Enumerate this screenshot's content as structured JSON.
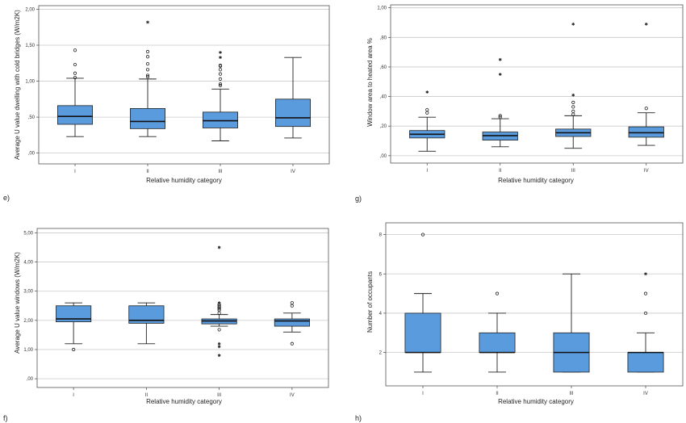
{
  "chart_data": [
    {
      "id": "tl",
      "type": "box",
      "panel_label": "",
      "xlabel": "Relative humidity category",
      "ylabel": "Average U value dwelling with cold bridges (W/m2K)",
      "categories": [
        "I",
        "II",
        "III",
        "IV"
      ],
      "ylim": [
        -0.15,
        2.05
      ],
      "yticks": [
        0,
        0.5,
        1.0,
        1.5,
        2.0
      ],
      "ytick_labels": [
        ",00",
        ",50",
        "1,00",
        "1,50",
        "2,00"
      ],
      "box_color": "#5a9bde",
      "boxes": [
        {
          "category": "I",
          "whisker_low": 0.23,
          "q1": 0.4,
          "median": 0.51,
          "q3": 0.66,
          "whisker_high": 1.04,
          "outliers_circle": [
            1.05,
            1.11,
            1.23,
            1.43
          ],
          "outliers_star": []
        },
        {
          "category": "II",
          "whisker_low": 0.23,
          "q1": 0.34,
          "median": 0.44,
          "q3": 0.62,
          "whisker_high": 1.03,
          "outliers_circle": [
            1.06,
            1.08,
            1.16,
            1.24,
            1.34,
            1.41
          ],
          "outliers_star": [
            1.82
          ]
        },
        {
          "category": "III",
          "whisker_low": 0.17,
          "q1": 0.35,
          "median": 0.45,
          "q3": 0.57,
          "whisker_high": 0.89,
          "outliers_circle": [
            0.94,
            0.96,
            1.03,
            1.1,
            1.16,
            1.21,
            1.22
          ],
          "outliers_star": [
            1.33,
            1.4
          ]
        },
        {
          "category": "IV",
          "whisker_low": 0.21,
          "q1": 0.37,
          "median": 0.49,
          "q3": 0.75,
          "whisker_high": 1.33,
          "outliers_circle": [],
          "outliers_star": []
        }
      ]
    },
    {
      "id": "tr",
      "type": "box",
      "panel_label": "",
      "xlabel": "Relative humidity category",
      "ylabel": "Window area to heated area %",
      "categories": [
        "I",
        "II",
        "III",
        "IV"
      ],
      "ylim": [
        -0.05,
        1.02
      ],
      "yticks": [
        0,
        0.2,
        0.4,
        0.6,
        0.8,
        1.0
      ],
      "ytick_labels": [
        ",00",
        ",20",
        ",40",
        ",60",
        ",80",
        "1,00"
      ],
      "box_color": "#5a9bde",
      "boxes": [
        {
          "category": "I",
          "whisker_low": 0.03,
          "q1": 0.12,
          "median": 0.145,
          "q3": 0.17,
          "whisker_high": 0.26,
          "outliers_circle": [
            0.29,
            0.31
          ],
          "outliers_star": [
            0.43
          ]
        },
        {
          "category": "II",
          "whisker_low": 0.06,
          "q1": 0.105,
          "median": 0.135,
          "q3": 0.16,
          "whisker_high": 0.25,
          "outliers_circle": [
            0.26,
            0.27
          ],
          "outliers_star": [
            0.55,
            0.65
          ]
        },
        {
          "category": "III",
          "whisker_low": 0.05,
          "q1": 0.13,
          "median": 0.155,
          "q3": 0.18,
          "whisker_high": 0.27,
          "outliers_circle": [
            0.28,
            0.3,
            0.33,
            0.36
          ],
          "outliers_star": [
            0.41,
            0.89
          ]
        },
        {
          "category": "IV",
          "whisker_low": 0.07,
          "q1": 0.125,
          "median": 0.155,
          "q3": 0.195,
          "whisker_high": 0.29,
          "outliers_circle": [
            0.32
          ],
          "outliers_star": [
            0.89
          ]
        }
      ]
    },
    {
      "id": "bl",
      "type": "box",
      "panel_label": "",
      "xlabel": "Relative humidity category",
      "ylabel": "Average U value windows (W/m2K)",
      "categories": [
        "I",
        "II",
        "III",
        "IV"
      ],
      "ylim": [
        -0.3,
        5.15
      ],
      "yticks": [
        0,
        1,
        2,
        3,
        4,
        5
      ],
      "ytick_labels": [
        ",00",
        "1,00",
        "2,00",
        "3,00",
        "4,00",
        "5,00"
      ],
      "box_color": "#5a9bde",
      "boxes": [
        {
          "category": "I",
          "whisker_low": 1.2,
          "q1": 1.95,
          "median": 2.05,
          "q3": 2.5,
          "whisker_high": 2.6,
          "outliers_circle": [
            1.0
          ],
          "outliers_star": []
        },
        {
          "category": "II",
          "whisker_low": 1.2,
          "q1": 1.9,
          "median": 2.0,
          "q3": 2.5,
          "whisker_high": 2.6,
          "outliers_circle": [],
          "outliers_star": []
        },
        {
          "category": "III",
          "whisker_low": 1.8,
          "q1": 1.88,
          "median": 1.98,
          "q3": 2.05,
          "whisker_high": 2.2,
          "outliers_circle": [
            1.68,
            2.25,
            2.35,
            2.4,
            2.45,
            2.5,
            2.55
          ],
          "outliers_star": [
            0.8,
            1.1,
            1.2,
            2.6,
            4.5
          ]
        },
        {
          "category": "IV",
          "whisker_low": 1.6,
          "q1": 1.8,
          "median": 1.98,
          "q3": 2.05,
          "whisker_high": 2.25,
          "outliers_circle": [
            1.2,
            2.5,
            2.6
          ],
          "outliers_star": []
        }
      ]
    },
    {
      "id": "br",
      "type": "box",
      "panel_label": "",
      "xlabel": "Relative humidity category",
      "ylabel": "Number of occupants",
      "categories": [
        "I",
        "II",
        "III",
        "IV"
      ],
      "ylim": [
        0.3,
        8.6
      ],
      "yticks": [
        2,
        4,
        6,
        8
      ],
      "ytick_labels": [
        "2",
        "4",
        "6",
        "8"
      ],
      "box_color": "#5a9bde",
      "boxes": [
        {
          "category": "I",
          "whisker_low": 1,
          "q1": 2,
          "median": 2,
          "q3": 4,
          "whisker_high": 5,
          "outliers_circle": [
            8
          ],
          "outliers_star": []
        },
        {
          "category": "II",
          "whisker_low": 1,
          "q1": 2,
          "median": 2,
          "q3": 3,
          "whisker_high": 4,
          "outliers_circle": [
            5
          ],
          "outliers_star": []
        },
        {
          "category": "III",
          "whisker_low": 1,
          "q1": 1,
          "median": 2,
          "q3": 3,
          "whisker_high": 6,
          "outliers_circle": [],
          "outliers_star": []
        },
        {
          "category": "IV",
          "whisker_low": 1,
          "q1": 1,
          "median": 2,
          "q3": 2,
          "whisker_high": 3,
          "outliers_circle": [
            4,
            5
          ],
          "outliers_star": [
            6
          ]
        }
      ]
    }
  ],
  "panel_labels": {
    "e": "e)",
    "f": "f)",
    "g": "g)",
    "h": "h)"
  }
}
